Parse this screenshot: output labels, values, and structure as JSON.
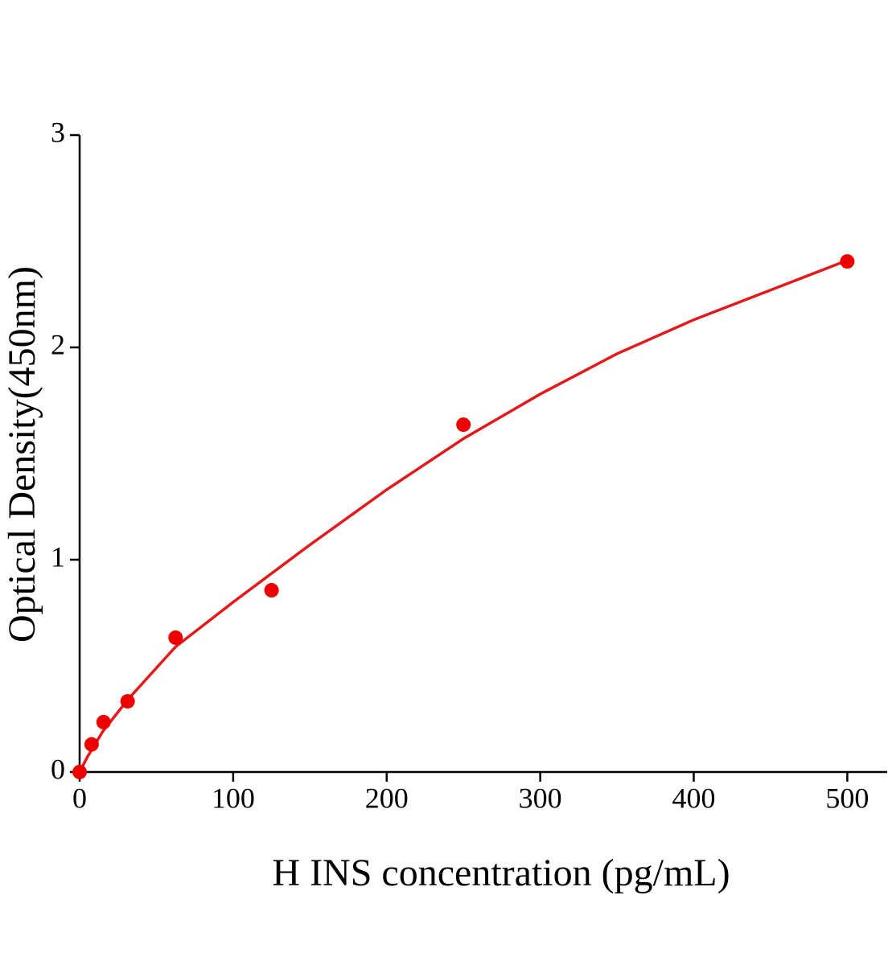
{
  "chart_data": {
    "type": "scatter",
    "x_label": "H INS concentration (pg/mL)",
    "y_label": "Optical Density(450nm)",
    "x": [
      0,
      7.8,
      15.6,
      31.25,
      62.5,
      125,
      250,
      500
    ],
    "values": [
      0.0,
      0.13,
      0.235,
      0.333,
      0.633,
      0.856,
      1.636,
      2.405
    ],
    "color": "#ee0000",
    "fit": {
      "x": [
        0,
        5,
        15,
        31.25,
        62.5,
        100,
        150,
        200,
        250,
        300,
        350,
        400,
        450,
        500
      ],
      "values": [
        0,
        0.07,
        0.19,
        0.34,
        0.59,
        0.8,
        1.07,
        1.33,
        1.57,
        1.78,
        1.97,
        2.13,
        2.27,
        2.41
      ],
      "color": "#e31a1c"
    },
    "xlim": [
      0,
      526
    ],
    "xticks": [
      0,
      100,
      200,
      300,
      400,
      500
    ],
    "ylim": [
      0,
      3
    ],
    "yticks": [
      0,
      1,
      2,
      3
    ]
  }
}
